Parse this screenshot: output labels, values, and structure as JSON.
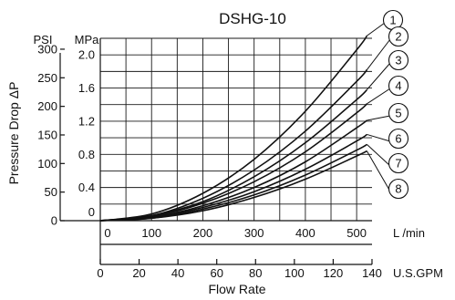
{
  "chart_data": {
    "type": "line",
    "title": "DSHG-10",
    "xlabel": "Flow Rate",
    "ylabel": "Pressure Drop ΔP",
    "x_units": {
      "primary": "L /min",
      "secondary": "U.S.GPM"
    },
    "y_units": {
      "psi": "PSI",
      "mpa": "MPa"
    },
    "xlim": [
      0,
      530
    ],
    "ylim_mpa": [
      0,
      2.2
    ],
    "x_ticks_lpm": [
      "0",
      "100",
      "200",
      "300",
      "400",
      "500"
    ],
    "x_ticks_gpm": [
      "0",
      "20",
      "40",
      "60",
      "80",
      "100",
      "120",
      "140"
    ],
    "y_ticks_psi": [
      "0",
      "50",
      "100",
      "150",
      "200",
      "250",
      "300"
    ],
    "y_ticks_mpa": [
      "0",
      "0.4",
      "0.8",
      "1.2",
      "1.6",
      "2.0"
    ],
    "grid": true,
    "series": [
      {
        "name": "1",
        "x": [
          0,
          100,
          200,
          300,
          400,
          500,
          520
        ],
        "y": [
          0,
          0.08,
          0.33,
          0.74,
          1.32,
          2.06,
          2.23
        ]
      },
      {
        "name": "2",
        "x": [
          0,
          100,
          200,
          300,
          400,
          500,
          520
        ],
        "y": [
          0,
          0.06,
          0.27,
          0.61,
          1.08,
          1.68,
          1.82
        ]
      },
      {
        "name": "3",
        "x": [
          0,
          100,
          200,
          300,
          400,
          500,
          520
        ],
        "y": [
          0,
          0.06,
          0.23,
          0.53,
          0.94,
          1.46,
          1.58
        ]
      },
      {
        "name": "4",
        "x": [
          0,
          100,
          200,
          300,
          400,
          500,
          520
        ],
        "y": [
          0,
          0.05,
          0.21,
          0.47,
          0.83,
          1.3,
          1.41
        ]
      },
      {
        "name": "5",
        "x": [
          0,
          100,
          200,
          300,
          400,
          500,
          520
        ],
        "y": [
          0,
          0.04,
          0.18,
          0.4,
          0.71,
          1.12,
          1.21
        ]
      },
      {
        "name": "6",
        "x": [
          0,
          100,
          200,
          300,
          400,
          500,
          520
        ],
        "y": [
          0,
          0.04,
          0.16,
          0.35,
          0.62,
          0.96,
          1.04
        ]
      },
      {
        "name": "7",
        "x": [
          0,
          100,
          200,
          300,
          400,
          500,
          520
        ],
        "y": [
          0,
          0.03,
          0.14,
          0.31,
          0.55,
          0.85,
          0.92
        ]
      },
      {
        "name": "8",
        "x": [
          0,
          100,
          200,
          300,
          400,
          500,
          520
        ],
        "y": [
          0,
          0.03,
          0.12,
          0.28,
          0.5,
          0.78,
          0.84
        ]
      }
    ]
  }
}
